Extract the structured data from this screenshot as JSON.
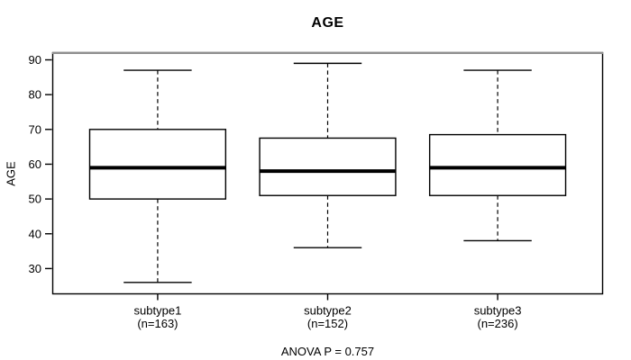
{
  "figure": {
    "title": "AGE",
    "y_label": "AGE",
    "annotation": "ANOVA P = 0.757"
  },
  "chart_data": {
    "type": "boxplot",
    "title": "AGE",
    "xlabel": "",
    "ylabel": "AGE",
    "ylim": [
      22.6,
      92.2
    ],
    "yticks": [
      30,
      40,
      50,
      60,
      70,
      80,
      90
    ],
    "grid": false,
    "legend": "none",
    "categories": [
      "subtype1",
      "subtype2",
      "subtype3"
    ],
    "category_sublabels": [
      "(n=163)",
      "(n=152)",
      "(n=236)"
    ],
    "series": [
      {
        "name": "subtype1",
        "n": 163,
        "whisker_low": 26,
        "q1": 50,
        "median": 59,
        "q3": 70,
        "whisker_high": 87
      },
      {
        "name": "subtype2",
        "n": 152,
        "whisker_low": 36,
        "q1": 51,
        "median": 58,
        "q3": 67.5,
        "whisker_high": 89
      },
      {
        "name": "subtype3",
        "n": 236,
        "whisker_low": 38,
        "q1": 51,
        "median": 59,
        "q3": 68.5,
        "whisker_high": 87
      }
    ],
    "annotation": "ANOVA P = 0.757",
    "colors": {
      "line": "#000000",
      "box_fill": "#ffffff",
      "text": "#000000",
      "background": "#ffffff",
      "frame_top_edge": "#8f8f8f"
    }
  }
}
